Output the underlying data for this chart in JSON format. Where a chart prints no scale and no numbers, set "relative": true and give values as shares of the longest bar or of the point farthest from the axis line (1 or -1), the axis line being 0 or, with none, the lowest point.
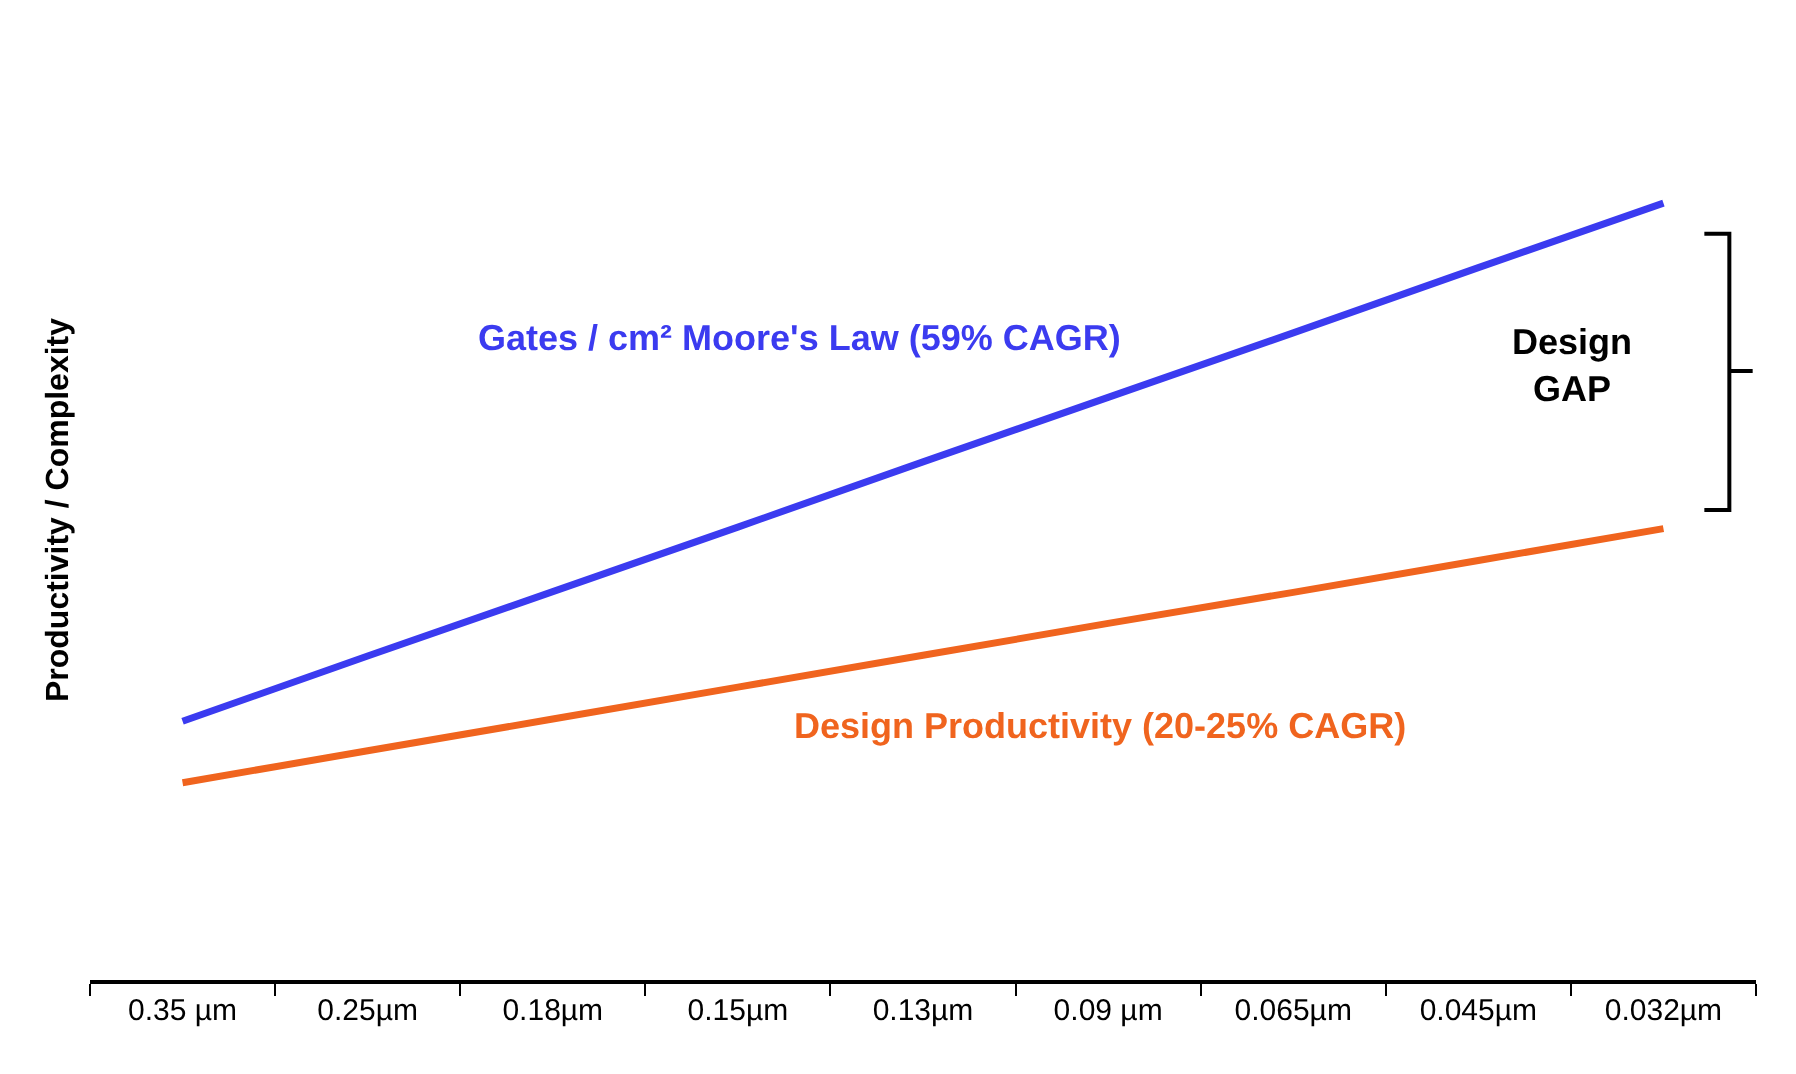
{
  "chart_data": {
    "type": "line",
    "relative": true,
    "ylabel": "Productivity / Complexity",
    "categories": [
      "0.35 µm",
      "0.25µm",
      "0.18µm",
      "0.15µm",
      "0.13µm",
      "0.09 µm",
      "0.065µm",
      "0.045µm",
      "0.032µm"
    ],
    "series": [
      {
        "name": "Gates / cm² Moore's Law (59% CAGR)",
        "color": "#3b3bf0",
        "values": [
          0.333,
          0.417,
          0.5,
          0.583,
          0.667,
          0.75,
          0.833,
          0.917,
          1.0
        ]
      },
      {
        "name": "Design Productivity (20-25% CAGR)",
        "color": "#f0641e",
        "values": [
          0.254,
          0.295,
          0.336,
          0.377,
          0.418,
          0.459,
          0.499,
          0.54,
          0.581
        ]
      }
    ],
    "annotations": [
      "Design\nGAP"
    ],
    "marker": "none",
    "line_style": "solid",
    "legend": false
  }
}
